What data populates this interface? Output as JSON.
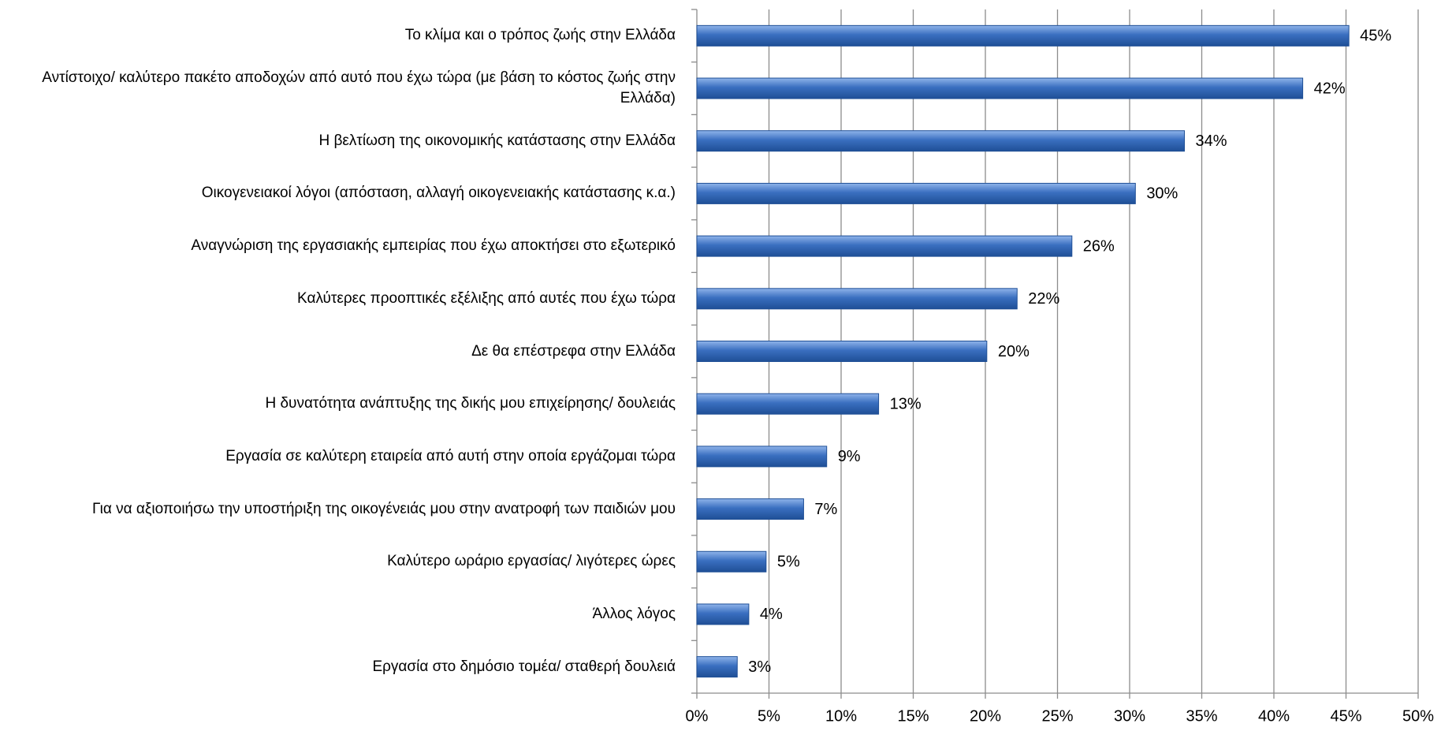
{
  "chart_data": {
    "type": "hbar",
    "categories": [
      "Το κλίμα και ο τρόπος ζωής στην Ελλάδα",
      "Αντίστοιχο/ καλύτερο πακέτο αποδοχών από αυτό που έχω τώρα (με βάση το κόστος ζωής στην Ελλάδα)",
      "Η βελτίωση της οικονομικής κατάστασης στην Ελλάδα",
      "Οικογενειακοί λόγοι (απόσταση, αλλαγή οικογενειακής κατάστασης κ.α.)",
      "Αναγνώριση της εργασιακής εμπειρίας που έχω αποκτήσει στο εξωτερικό",
      "Καλύτερες προοπτικές εξέλιξης από αυτές που έχω τώρα",
      "Δε θα επέστρεφα στην Ελλάδα",
      "Η δυνατότητα ανάπτυξης της δικής μου επιχείρησης/ δουλειάς",
      "Εργασία σε καλύτερη εταιρεία από αυτή στην οποία εργάζομαι τώρα",
      "Για να αξιοποιήσω την υποστήριξη της οικογένειάς μου στην ανατροφή των παιδιών μου",
      "Καλύτερο ωράριο εργασίας/ λιγότερες ώρες",
      "Άλλος λόγος",
      "Εργασία στο δημόσιο τομέα/ σταθερή δουλειά"
    ],
    "values": [
      45.2,
      42,
      33.8,
      30.4,
      26,
      22.2,
      20.1,
      12.6,
      9,
      7.4,
      4.8,
      3.6,
      2.8
    ],
    "value_labels": [
      "45%",
      "42%",
      "34%",
      "30%",
      "26%",
      "22%",
      "20%",
      "13%",
      "9%",
      "7%",
      "5%",
      "4%",
      "3%"
    ],
    "color": "#3a6fc0",
    "xlim": [
      0,
      50
    ],
    "xticks": [
      {
        "value": 0,
        "label": "0%"
      },
      {
        "value": 5,
        "label": "5%"
      },
      {
        "value": 10,
        "label": "10%"
      },
      {
        "value": 15,
        "label": "15%"
      },
      {
        "value": 20,
        "label": "20%"
      },
      {
        "value": 25,
        "label": "25%"
      },
      {
        "value": 30,
        "label": "30%"
      },
      {
        "value": 35,
        "label": "35%"
      },
      {
        "value": 40,
        "label": "40%"
      },
      {
        "value": 45,
        "label": "45%"
      },
      {
        "value": 50,
        "label": "50%"
      }
    ],
    "grid": true
  }
}
